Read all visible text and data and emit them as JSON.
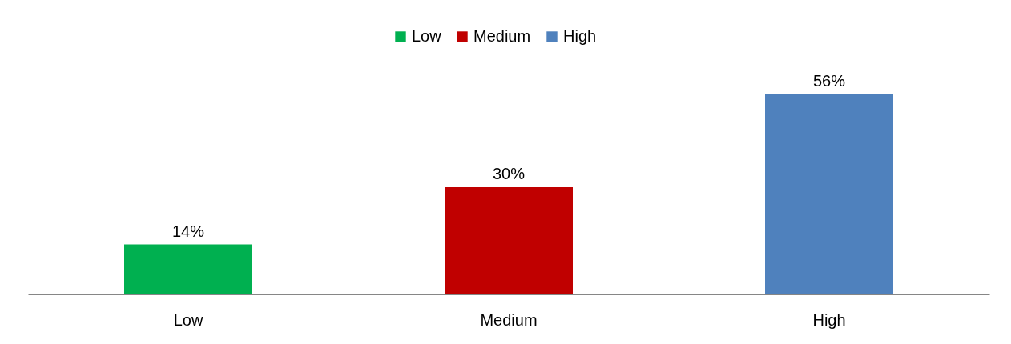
{
  "chart_data": {
    "type": "bar",
    "categories": [
      "Low",
      "Medium",
      "High"
    ],
    "series": [
      {
        "name": "Low",
        "color": "#00b050",
        "values": [
          14,
          null,
          null
        ],
        "value_labels": [
          "14%",
          null,
          null
        ]
      },
      {
        "name": "Medium",
        "color": "#c00000",
        "values": [
          null,
          30,
          null
        ],
        "value_labels": [
          null,
          "30%",
          null
        ]
      },
      {
        "name": "High",
        "color": "#4f81bd",
        "values": [
          null,
          null,
          56
        ],
        "value_labels": [
          null,
          null,
          "56%"
        ]
      }
    ],
    "legend": "top"
  }
}
